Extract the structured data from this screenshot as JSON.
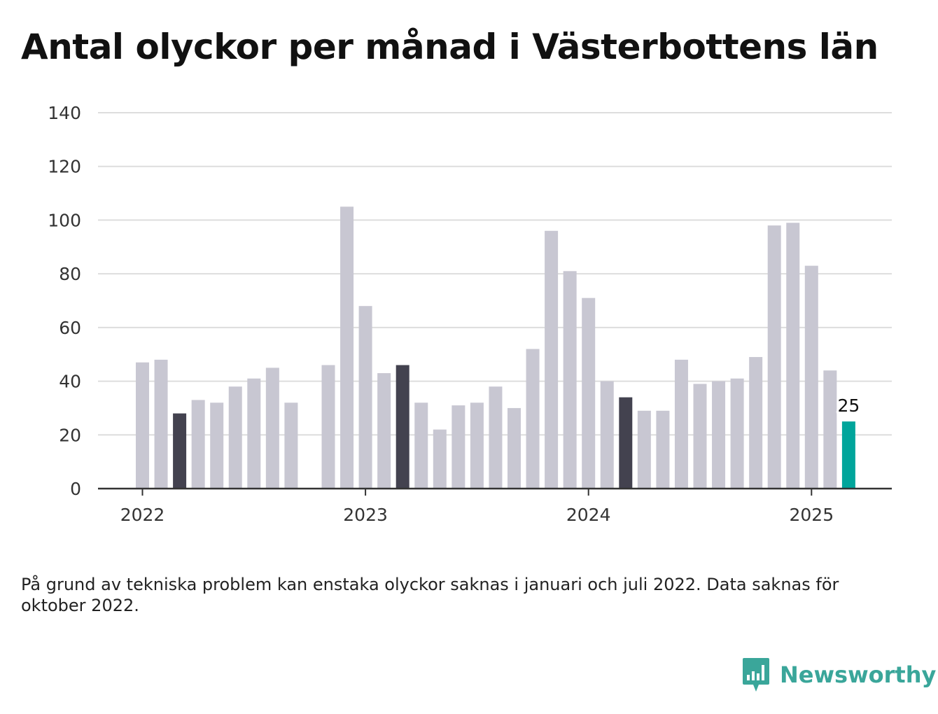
{
  "title": "Antal olyckor per månad i Västerbottens län",
  "footnote": "På grund av tekniska problem kan enstaka olyckor saknas i januari och juli 2022. Data saknas för oktober 2022.",
  "brand": {
    "name": "Newsworthy",
    "icon": "newsworthy-logo-icon",
    "color": "#3aa69a"
  },
  "colors": {
    "bar": "#c8c7d2",
    "highlight": "#43424f",
    "latest": "#00a59b",
    "grid": "#dddddd",
    "axis": "#333333"
  },
  "chart_data": {
    "type": "bar",
    "ylim": [
      0,
      140
    ],
    "yticks": [
      0,
      20,
      40,
      60,
      80,
      100,
      120,
      140
    ],
    "xticks": [
      "2022",
      "2023",
      "2024",
      "2025"
    ],
    "grid": true,
    "categories": [
      "2022-01",
      "2022-02",
      "2022-03",
      "2022-04",
      "2022-05",
      "2022-06",
      "2022-07",
      "2022-08",
      "2022-09",
      "2022-10",
      "2022-11",
      "2022-12",
      "2023-01",
      "2023-02",
      "2023-03",
      "2023-04",
      "2023-05",
      "2023-06",
      "2023-07",
      "2023-08",
      "2023-09",
      "2023-10",
      "2023-11",
      "2023-12",
      "2024-01",
      "2024-02",
      "2024-03",
      "2024-04",
      "2024-05",
      "2024-06",
      "2024-07",
      "2024-08",
      "2024-09",
      "2024-10",
      "2024-11",
      "2024-12",
      "2025-01",
      "2025-02",
      "2025-03"
    ],
    "values": [
      47,
      48,
      28,
      33,
      32,
      38,
      41,
      45,
      32,
      null,
      46,
      105,
      68,
      43,
      46,
      32,
      22,
      31,
      32,
      38,
      30,
      52,
      96,
      81,
      71,
      40,
      34,
      29,
      29,
      48,
      39,
      40,
      41,
      49,
      98,
      99,
      83,
      44,
      25
    ],
    "highlighted_categories": [
      "2022-03",
      "2023-03",
      "2024-03"
    ],
    "latest": {
      "category": "2025-03",
      "label": "25"
    }
  }
}
